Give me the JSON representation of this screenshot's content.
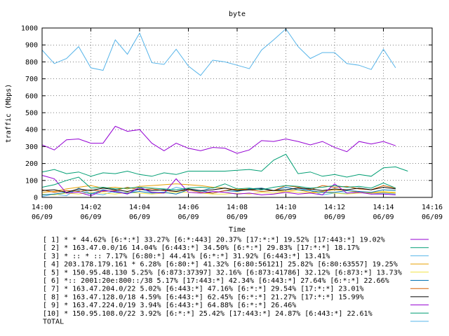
{
  "chart_data": {
    "type": "line",
    "title": "byte",
    "xlabel": "Time",
    "ylabel": "traffic (Mbps)",
    "ylim": [
      0,
      1000
    ],
    "yticks": [
      0,
      100,
      200,
      300,
      400,
      500,
      600,
      700,
      800,
      900,
      1000
    ],
    "xlim": [
      "14:00",
      "14:16"
    ],
    "xticks": [
      {
        "time": "14:00",
        "date": "06/09"
      },
      {
        "time": "14:02",
        "date": "06/09"
      },
      {
        "time": "14:04",
        "date": "06/09"
      },
      {
        "time": "14:06",
        "date": "06/09"
      },
      {
        "time": "14:08",
        "date": "06/09"
      },
      {
        "time": "14:10",
        "date": "06/09"
      },
      {
        "time": "14:12",
        "date": "06/09"
      },
      {
        "time": "14:14",
        "date": "06/09"
      },
      {
        "time": "14:16",
        "date": "06/09"
      }
    ],
    "grid": true,
    "legend_position": "bottom",
    "x": [
      "14:00:00",
      "14:00:30",
      "14:01:00",
      "14:01:30",
      "14:02:00",
      "14:02:30",
      "14:03:00",
      "14:03:30",
      "14:04:00",
      "14:04:30",
      "14:05:00",
      "14:05:30",
      "14:06:00",
      "14:06:30",
      "14:07:00",
      "14:07:30",
      "14:08:00",
      "14:08:30",
      "14:09:00",
      "14:09:30",
      "14:10:00",
      "14:10:30",
      "14:11:00",
      "14:11:30",
      "14:12:00",
      "14:12:30",
      "14:13:00",
      "14:13:30",
      "14:14:00",
      "14:14:30",
      "14:15:00"
    ],
    "series": [
      {
        "name": "[ 1] * * 44.62%  [6:*:*] 33.27% [6:*:443] 20.37% [17:*:*] 19.52% [17:443:*] 19.02%",
        "color": "#9400d3",
        "values": [
          310,
          280,
          340,
          345,
          320,
          320,
          420,
          390,
          400,
          320,
          275,
          320,
          290,
          275,
          295,
          290,
          260,
          280,
          335,
          330,
          345,
          330,
          310,
          330,
          295,
          270,
          330,
          315,
          330,
          305,
          null
        ]
      },
      {
        "name": "[ 2] * 163.47.0.0/16 14.04%  [6:443:*] 34.50% [6:*:*] 29.83% [17:*:*] 18.17%",
        "color": "#009e73",
        "values": [
          150,
          165,
          140,
          150,
          125,
          145,
          140,
          155,
          135,
          125,
          145,
          135,
          155,
          155,
          155,
          155,
          160,
          165,
          155,
          220,
          255,
          140,
          150,
          125,
          135,
          120,
          135,
          125,
          175,
          180,
          155
        ]
      },
      {
        "name": "[ 3] * :: * :: 7.17%  [6:80:*] 44.41% [6:*:*] 31.92% [6:443:*] 13.41%",
        "color": "#56b4e9",
        "values": [
          5,
          20,
          10,
          55,
          25,
          15,
          40,
          20,
          50,
          30,
          30,
          60,
          45,
          35,
          60,
          55,
          45,
          45,
          35,
          40,
          45,
          55,
          40,
          15,
          25,
          25,
          30,
          20,
          25,
          20,
          null
        ]
      },
      {
        "name": "[ 4] 203.178.179.161 * 6.28%  [6:80:*] 41.32% [6:80:56121] 25.82% [6:80:63557] 19.25%",
        "color": "#e69f00",
        "values": [
          30,
          35,
          50,
          60,
          70,
          55,
          60,
          50,
          65,
          70,
          75,
          80,
          75,
          70,
          60,
          55,
          45,
          50,
          55,
          40,
          35,
          45,
          30,
          35,
          45,
          40,
          30,
          25,
          30,
          25,
          null
        ]
      },
      {
        "name": "[ 5] * 150.95.48.130 5.25%  [6:873:37397] 32.16% [6:873:41786] 32.12% [6:873:*] 13.73%",
        "color": "#f0e442",
        "values": [
          20,
          15,
          25,
          20,
          30,
          25,
          20,
          30,
          25,
          20,
          25,
          30,
          30,
          25,
          20,
          20,
          25,
          20,
          30,
          25,
          35,
          30,
          25,
          30,
          25,
          20,
          25,
          30,
          35,
          30,
          null
        ]
      },
      {
        "name": "[ 6] *:: 2001:20e:800::/38 5.17%  [17:443:*] 42.34% [6:443:*] 27.64% [6:*:*] 22.66%",
        "color": "#0072b2",
        "values": [
          15,
          20,
          30,
          40,
          20,
          45,
          30,
          25,
          35,
          25,
          30,
          20,
          45,
          40,
          25,
          40,
          35,
          50,
          55,
          40,
          60,
          45,
          40,
          30,
          30,
          40,
          35,
          30,
          45,
          40,
          null
        ]
      },
      {
        "name": "[ 7] * 163.47.204.0/22 5.02%  [6:443:*] 47.16% [6:*:*] 29.54% [17:*:*] 23.01%",
        "color": "#d55e00",
        "values": [
          45,
          30,
          40,
          35,
          45,
          35,
          40,
          60,
          45,
          50,
          40,
          35,
          45,
          30,
          25,
          40,
          50,
          45,
          35,
          40,
          70,
          60,
          45,
          70,
          60,
          65,
          50,
          45,
          70,
          55,
          null
        ]
      },
      {
        "name": "[ 8] * 163.47.128.0/18 4.59%  [6:443:*] 62.45% [6:*:*] 21.27% [17:*:*] 15.99%",
        "color": "#000000",
        "values": [
          40,
          45,
          30,
          50,
          40,
          55,
          45,
          35,
          50,
          40,
          45,
          35,
          50,
          40,
          45,
          55,
          40,
          45,
          50,
          40,
          45,
          55,
          50,
          40,
          50,
          45,
          55,
          45,
          60,
          50,
          null
        ]
      },
      {
        "name": "[ 9] * 163.47.224.0/19 3.94%  [6:443:*] 64.88% [6:*:*] 26.46%",
        "color": "#9400d3",
        "values": [
          130,
          110,
          25,
          30,
          10,
          40,
          35,
          20,
          60,
          30,
          25,
          110,
          30,
          25,
          35,
          30,
          20,
          25,
          15,
          20,
          30,
          20,
          25,
          15,
          80,
          25,
          30,
          20,
          20,
          15,
          null
        ]
      },
      {
        "name": "[10] * 150.95.108.0/22 3.92%  [6:*:*] 25.42% [17:443:*] 24.87% [6:443:*] 22.61%",
        "color": "#009e73",
        "values": [
          60,
          75,
          100,
          120,
          55,
          60,
          50,
          55,
          60,
          55,
          50,
          45,
          55,
          60,
          55,
          80,
          50,
          55,
          45,
          60,
          70,
          65,
          55,
          60,
          70,
          60,
          65,
          55,
          85,
          55,
          null
        ]
      },
      {
        "name": "TOTAL",
        "color": "#56b4e9",
        "values": [
          870,
          790,
          820,
          890,
          765,
          750,
          930,
          845,
          970,
          795,
          785,
          875,
          775,
          720,
          810,
          800,
          780,
          760,
          870,
          930,
          995,
          890,
          820,
          855,
          855,
          790,
          780,
          755,
          875,
          765,
          null
        ]
      }
    ]
  }
}
